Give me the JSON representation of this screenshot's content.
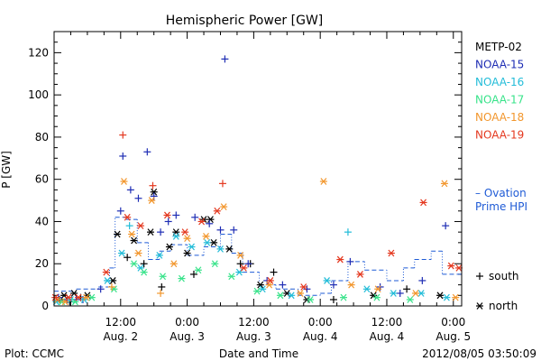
{
  "chart_data": {
    "type": "scatter",
    "title": "Hemispheric Power [GW]",
    "ylabel": "P [GW]",
    "xlabel": "Date and Time",
    "ylim": [
      0,
      130
    ],
    "xlim": [
      "2012-08-02 00:00",
      "2012-08-05 01:30"
    ],
    "yticks": [
      0,
      20,
      40,
      60,
      80,
      100,
      120
    ],
    "xticks": [
      {
        "time": "2012-08-02 12:00",
        "label": "12:00",
        "date": "Aug. 2"
      },
      {
        "time": "2012-08-03 00:00",
        "label": "0:00",
        "date": "Aug. 3"
      },
      {
        "time": "2012-08-03 12:00",
        "label": "12:00",
        "date": "Aug. 3"
      },
      {
        "time": "2012-08-04 00:00",
        "label": "0:00",
        "date": "Aug. 4"
      },
      {
        "time": "2012-08-04 12:00",
        "label": "12:00",
        "date": "Aug. 4"
      },
      {
        "time": "2012-08-05 00:00",
        "label": "0:00",
        "date": "Aug. 5"
      }
    ],
    "legend": {
      "position": "right",
      "markers": [
        {
          "symbol": "+",
          "label": "south"
        },
        {
          "symbol": "*",
          "label": "north"
        }
      ]
    },
    "series": [
      {
        "name": "METP-02",
        "color": "#000000",
        "points": [
          {
            "x": "2012-08-02 01:00",
            "y": 3,
            "m": "+"
          },
          {
            "x": "2012-08-02 01:48",
            "y": 5,
            "m": "*"
          },
          {
            "x": "2012-08-02 02:48",
            "y": 2,
            "m": "+"
          },
          {
            "x": "2012-08-02 03:36",
            "y": 6,
            "m": "*"
          },
          {
            "x": "2012-08-02 04:48",
            "y": 4,
            "m": "+"
          },
          {
            "x": "2012-08-02 06:00",
            "y": 5,
            "m": "*"
          },
          {
            "x": "2012-08-02 10:36",
            "y": 12,
            "m": "*"
          },
          {
            "x": "2012-08-02 11:24",
            "y": 34,
            "m": "*"
          },
          {
            "x": "2012-08-02 13:12",
            "y": 23,
            "m": "+"
          },
          {
            "x": "2012-08-02 14:24",
            "y": 31,
            "m": "*"
          },
          {
            "x": "2012-08-02 16:12",
            "y": 20,
            "m": "+"
          },
          {
            "x": "2012-08-02 17:24",
            "y": 35,
            "m": "*"
          },
          {
            "x": "2012-08-02 18:00",
            "y": 54,
            "m": "*"
          },
          {
            "x": "2012-08-02 19:24",
            "y": 9,
            "m": "+"
          },
          {
            "x": "2012-08-02 20:48",
            "y": 28,
            "m": "*"
          },
          {
            "x": "2012-08-02 22:00",
            "y": 35,
            "m": "*"
          },
          {
            "x": "2012-08-03 00:00",
            "y": 25,
            "m": "*"
          },
          {
            "x": "2012-08-03 01:12",
            "y": 15,
            "m": "+"
          },
          {
            "x": "2012-08-03 03:00",
            "y": 41,
            "m": "*"
          },
          {
            "x": "2012-08-03 04:12",
            "y": 41,
            "m": "*"
          },
          {
            "x": "2012-08-03 04:48",
            "y": 30,
            "m": "*"
          },
          {
            "x": "2012-08-03 07:36",
            "y": 27,
            "m": "*"
          },
          {
            "x": "2012-08-03 09:36",
            "y": 20,
            "m": "+"
          },
          {
            "x": "2012-08-03 11:24",
            "y": 20,
            "m": "+"
          },
          {
            "x": "2012-08-03 13:12",
            "y": 10,
            "m": "*"
          },
          {
            "x": "2012-08-03 15:36",
            "y": 16,
            "m": "+"
          },
          {
            "x": "2012-08-03 18:00",
            "y": 6,
            "m": "*"
          },
          {
            "x": "2012-08-03 21:36",
            "y": 3,
            "m": "*"
          },
          {
            "x": "2012-08-04 02:24",
            "y": 3,
            "m": "+"
          },
          {
            "x": "2012-08-04 09:36",
            "y": 5,
            "m": "*"
          },
          {
            "x": "2012-08-04 15:36",
            "y": 8,
            "m": "+"
          },
          {
            "x": "2012-08-04 21:36",
            "y": 5,
            "m": "*"
          }
        ]
      },
      {
        "name": "NOAA-15",
        "color": "#1e2db4",
        "points": [
          {
            "x": "2012-08-02 00:48",
            "y": 4,
            "m": "+"
          },
          {
            "x": "2012-08-02 02:24",
            "y": 3,
            "m": "+"
          },
          {
            "x": "2012-08-02 04:00",
            "y": 3,
            "m": "+"
          },
          {
            "x": "2012-08-02 05:12",
            "y": 3,
            "m": "+"
          },
          {
            "x": "2012-08-02 08:24",
            "y": 8,
            "m": "+"
          },
          {
            "x": "2012-08-02 12:00",
            "y": 45,
            "m": "+"
          },
          {
            "x": "2012-08-02 12:24",
            "y": 71,
            "m": "+"
          },
          {
            "x": "2012-08-02 13:48",
            "y": 55,
            "m": "+"
          },
          {
            "x": "2012-08-02 15:12",
            "y": 51,
            "m": "+"
          },
          {
            "x": "2012-08-02 16:48",
            "y": 73,
            "m": "+"
          },
          {
            "x": "2012-08-02 18:00",
            "y": 52,
            "m": "+"
          },
          {
            "x": "2012-08-02 19:12",
            "y": 35,
            "m": "+"
          },
          {
            "x": "2012-08-02 20:36",
            "y": 40,
            "m": "+"
          },
          {
            "x": "2012-08-02 22:00",
            "y": 43,
            "m": "+"
          },
          {
            "x": "2012-08-03 01:24",
            "y": 42,
            "m": "+"
          },
          {
            "x": "2012-08-03 04:00",
            "y": 39,
            "m": "+"
          },
          {
            "x": "2012-08-03 06:00",
            "y": 36,
            "m": "+"
          },
          {
            "x": "2012-08-03 06:48",
            "y": 117,
            "m": "+"
          },
          {
            "x": "2012-08-03 08:24",
            "y": 36,
            "m": "+"
          },
          {
            "x": "2012-08-03 11:00",
            "y": 20,
            "m": "+"
          },
          {
            "x": "2012-08-03 14:24",
            "y": 12,
            "m": "+"
          },
          {
            "x": "2012-08-03 17:12",
            "y": 10,
            "m": "+"
          },
          {
            "x": "2012-08-03 21:36",
            "y": 8,
            "m": "+"
          },
          {
            "x": "2012-08-04 02:24",
            "y": 10,
            "m": "+"
          },
          {
            "x": "2012-08-04 05:24",
            "y": 21,
            "m": "+"
          },
          {
            "x": "2012-08-04 10:48",
            "y": 9,
            "m": "+"
          },
          {
            "x": "2012-08-04 14:24",
            "y": 6,
            "m": "+"
          },
          {
            "x": "2012-08-04 18:24",
            "y": 12,
            "m": "+"
          },
          {
            "x": "2012-08-04 22:36",
            "y": 38,
            "m": "+"
          }
        ]
      },
      {
        "name": "NOAA-16",
        "color": "#22bcd8",
        "points": [
          {
            "x": "2012-08-02 00:24",
            "y": 2,
            "m": "*"
          },
          {
            "x": "2012-08-02 03:00",
            "y": 3,
            "m": "*"
          },
          {
            "x": "2012-08-02 05:24",
            "y": 3,
            "m": "*"
          },
          {
            "x": "2012-08-02 09:36",
            "y": 12,
            "m": "*"
          },
          {
            "x": "2012-08-02 12:12",
            "y": 25,
            "m": "*"
          },
          {
            "x": "2012-08-02 13:36",
            "y": 38,
            "m": "+"
          },
          {
            "x": "2012-08-02 15:36",
            "y": 18,
            "m": "*"
          },
          {
            "x": "2012-08-02 19:00",
            "y": 24,
            "m": "*"
          },
          {
            "x": "2012-08-02 22:00",
            "y": 33,
            "m": "*"
          },
          {
            "x": "2012-08-03 00:48",
            "y": 28,
            "m": "*"
          },
          {
            "x": "2012-08-03 03:36",
            "y": 30,
            "m": "*"
          },
          {
            "x": "2012-08-03 06:00",
            "y": 27,
            "m": "*"
          },
          {
            "x": "2012-08-03 09:24",
            "y": 16,
            "m": "*"
          },
          {
            "x": "2012-08-03 13:36",
            "y": 8,
            "m": "*"
          },
          {
            "x": "2012-08-03 18:48",
            "y": 5,
            "m": "*"
          },
          {
            "x": "2012-08-04 01:12",
            "y": 12,
            "m": "*"
          },
          {
            "x": "2012-08-04 05:00",
            "y": 35,
            "m": "+"
          },
          {
            "x": "2012-08-04 08:24",
            "y": 8,
            "m": "*"
          },
          {
            "x": "2012-08-04 13:12",
            "y": 6,
            "m": "*"
          },
          {
            "x": "2012-08-04 18:12",
            "y": 6,
            "m": "*"
          },
          {
            "x": "2012-08-04 22:48",
            "y": 4,
            "m": "*"
          }
        ]
      },
      {
        "name": "NOAA-17",
        "color": "#38e38a",
        "points": [
          {
            "x": "2012-08-02 01:24",
            "y": 2,
            "m": "*"
          },
          {
            "x": "2012-08-02 03:48",
            "y": 2,
            "m": "*"
          },
          {
            "x": "2012-08-02 06:48",
            "y": 4,
            "m": "*"
          },
          {
            "x": "2012-08-02 10:48",
            "y": 8,
            "m": "*"
          },
          {
            "x": "2012-08-02 14:24",
            "y": 20,
            "m": "*"
          },
          {
            "x": "2012-08-02 16:12",
            "y": 16,
            "m": "*"
          },
          {
            "x": "2012-08-02 19:36",
            "y": 14,
            "m": "*"
          },
          {
            "x": "2012-08-02 23:00",
            "y": 13,
            "m": "*"
          },
          {
            "x": "2012-08-03 02:00",
            "y": 17,
            "m": "*"
          },
          {
            "x": "2012-08-03 05:00",
            "y": 20,
            "m": "*"
          },
          {
            "x": "2012-08-03 08:00",
            "y": 14,
            "m": "*"
          },
          {
            "x": "2012-08-03 12:36",
            "y": 7,
            "m": "*"
          },
          {
            "x": "2012-08-03 16:48",
            "y": 5,
            "m": "*"
          },
          {
            "x": "2012-08-03 22:12",
            "y": 3,
            "m": "*"
          },
          {
            "x": "2012-08-04 04:12",
            "y": 4,
            "m": "*"
          },
          {
            "x": "2012-08-04 10:12",
            "y": 4,
            "m": "*"
          },
          {
            "x": "2012-08-04 16:12",
            "y": 3,
            "m": "*"
          }
        ]
      },
      {
        "name": "NOAA-18",
        "color": "#f2962c",
        "points": [
          {
            "x": "2012-08-02 00:36",
            "y": 3,
            "m": "*"
          },
          {
            "x": "2012-08-02 02:00",
            "y": 2,
            "m": "*"
          },
          {
            "x": "2012-08-02 05:48",
            "y": 4,
            "m": "*"
          },
          {
            "x": "2012-08-02 10:24",
            "y": 9,
            "m": "+"
          },
          {
            "x": "2012-08-02 12:36",
            "y": 59,
            "m": "*"
          },
          {
            "x": "2012-08-02 14:00",
            "y": 34,
            "m": "*"
          },
          {
            "x": "2012-08-02 15:12",
            "y": 25,
            "m": "*"
          },
          {
            "x": "2012-08-02 17:36",
            "y": 50,
            "m": "*"
          },
          {
            "x": "2012-08-02 19:12",
            "y": 6,
            "m": "+"
          },
          {
            "x": "2012-08-02 21:36",
            "y": 20,
            "m": "*"
          },
          {
            "x": "2012-08-03 00:00",
            "y": 32,
            "m": "*"
          },
          {
            "x": "2012-08-03 03:24",
            "y": 33,
            "m": "*"
          },
          {
            "x": "2012-08-03 06:36",
            "y": 47,
            "m": "*"
          },
          {
            "x": "2012-08-03 09:36",
            "y": 24,
            "m": "*"
          },
          {
            "x": "2012-08-03 14:48",
            "y": 10,
            "m": "*"
          },
          {
            "x": "2012-08-03 20:24",
            "y": 6,
            "m": "*"
          },
          {
            "x": "2012-08-04 00:36",
            "y": 59,
            "m": "*"
          },
          {
            "x": "2012-08-04 05:36",
            "y": 10,
            "m": "*"
          },
          {
            "x": "2012-08-04 10:24",
            "y": 8,
            "m": "*"
          },
          {
            "x": "2012-08-04 17:12",
            "y": 6,
            "m": "*"
          },
          {
            "x": "2012-08-04 22:24",
            "y": 58,
            "m": "*"
          },
          {
            "x": "2012-08-05 00:24",
            "y": 4,
            "m": "*"
          }
        ]
      },
      {
        "name": "NOAA-19",
        "color": "#e4381f",
        "points": [
          {
            "x": "2012-08-02 00:12",
            "y": 4,
            "m": "*"
          },
          {
            "x": "2012-08-02 02:36",
            "y": 4,
            "m": "*"
          },
          {
            "x": "2012-08-02 04:24",
            "y": 4,
            "m": "*"
          },
          {
            "x": "2012-08-02 09:24",
            "y": 16,
            "m": "*"
          },
          {
            "x": "2012-08-02 12:24",
            "y": 81,
            "m": "+"
          },
          {
            "x": "2012-08-02 13:12",
            "y": 42,
            "m": "*"
          },
          {
            "x": "2012-08-02 15:36",
            "y": 38,
            "m": "*"
          },
          {
            "x": "2012-08-02 17:48",
            "y": 57,
            "m": "+"
          },
          {
            "x": "2012-08-02 20:24",
            "y": 43,
            "m": "*"
          },
          {
            "x": "2012-08-02 23:36",
            "y": 35,
            "m": "*"
          },
          {
            "x": "2012-08-03 02:36",
            "y": 40,
            "m": "*"
          },
          {
            "x": "2012-08-03 05:24",
            "y": 45,
            "m": "*"
          },
          {
            "x": "2012-08-03 06:24",
            "y": 58,
            "m": "+"
          },
          {
            "x": "2012-08-03 10:12",
            "y": 18,
            "m": "*"
          },
          {
            "x": "2012-08-03 15:00",
            "y": 12,
            "m": "*"
          },
          {
            "x": "2012-08-03 21:00",
            "y": 9,
            "m": "*"
          },
          {
            "x": "2012-08-04 03:36",
            "y": 22,
            "m": "*"
          },
          {
            "x": "2012-08-04 07:12",
            "y": 15,
            "m": "*"
          },
          {
            "x": "2012-08-04 12:48",
            "y": 25,
            "m": "*"
          },
          {
            "x": "2012-08-04 18:36",
            "y": 49,
            "m": "*"
          },
          {
            "x": "2012-08-04 23:36",
            "y": 19,
            "m": "*"
          },
          {
            "x": "2012-08-05 01:00",
            "y": 18,
            "m": "*"
          }
        ]
      }
    ],
    "ovation": {
      "name": "– Ovation Prime HPI",
      "label_lines": [
        "– Ovation",
        "Prime HPI"
      ],
      "color": "#1f5bd6",
      "points": [
        {
          "x": "2012-08-02 00:00",
          "y": 7
        },
        {
          "x": "2012-08-02 04:00",
          "y": 8
        },
        {
          "x": "2012-08-02 08:00",
          "y": 9
        },
        {
          "x": "2012-08-02 10:00",
          "y": 18
        },
        {
          "x": "2012-08-02 11:00",
          "y": 42
        },
        {
          "x": "2012-08-02 13:00",
          "y": 41
        },
        {
          "x": "2012-08-02 15:00",
          "y": 30
        },
        {
          "x": "2012-08-02 17:00",
          "y": 22
        },
        {
          "x": "2012-08-02 19:00",
          "y": 26
        },
        {
          "x": "2012-08-02 21:00",
          "y": 29
        },
        {
          "x": "2012-08-03 00:00",
          "y": 24
        },
        {
          "x": "2012-08-03 03:00",
          "y": 28
        },
        {
          "x": "2012-08-03 06:00",
          "y": 34
        },
        {
          "x": "2012-08-03 08:00",
          "y": 25
        },
        {
          "x": "2012-08-03 10:00",
          "y": 16
        },
        {
          "x": "2012-08-03 13:00",
          "y": 10
        },
        {
          "x": "2012-08-03 16:00",
          "y": 8
        },
        {
          "x": "2012-08-03 20:00",
          "y": 5
        },
        {
          "x": "2012-08-04 00:00",
          "y": 6
        },
        {
          "x": "2012-08-04 02:00",
          "y": 12
        },
        {
          "x": "2012-08-04 05:00",
          "y": 21
        },
        {
          "x": "2012-08-04 08:00",
          "y": 17
        },
        {
          "x": "2012-08-04 12:00",
          "y": 12
        },
        {
          "x": "2012-08-04 15:00",
          "y": 18
        },
        {
          "x": "2012-08-04 17:00",
          "y": 22
        },
        {
          "x": "2012-08-04 20:00",
          "y": 26
        },
        {
          "x": "2012-08-04 22:00",
          "y": 15
        },
        {
          "x": "2012-08-05 01:30",
          "y": 9
        }
      ]
    }
  },
  "footer": {
    "left": "Plot: CCMC",
    "right": "2012/08/05 03:50:09"
  }
}
